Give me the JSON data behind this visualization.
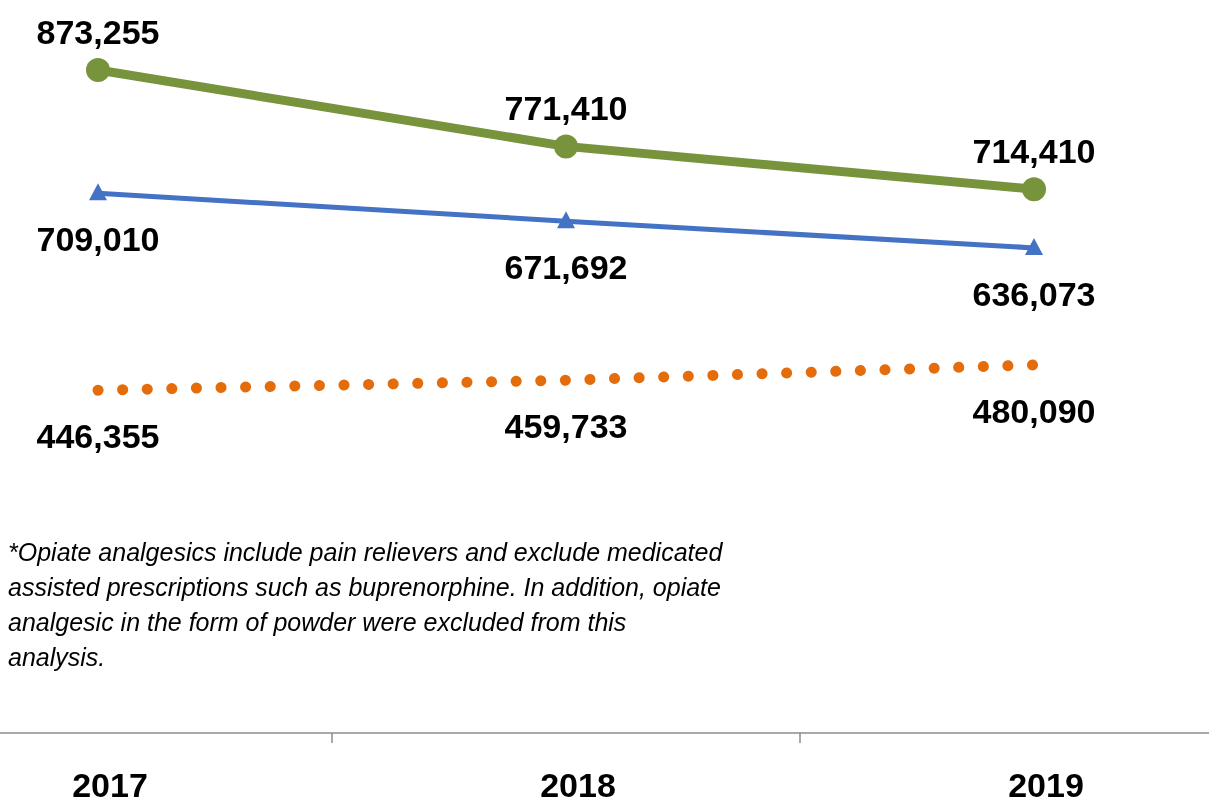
{
  "chart_data": {
    "type": "line",
    "categories": [
      "2017",
      "2018",
      "2019"
    ],
    "series": [
      {
        "color": "#77933c",
        "marker": "circle",
        "line_style": "solid",
        "values": [
          873255,
          771410,
          714410
        ],
        "value_labels": [
          "873,255",
          "771,410",
          "714,410"
        ]
      },
      {
        "color": "#4472c4",
        "marker": "triangle",
        "line_style": "solid",
        "values": [
          709010,
          671692,
          636073
        ],
        "value_labels": [
          "709,010",
          "671,692",
          "636,073"
        ]
      },
      {
        "color": "#e46c0a",
        "marker": "none",
        "line_style": "dotted",
        "values": [
          446355,
          459733,
          480090
        ],
        "value_labels": [
          "446,355",
          "459,733",
          "480,090"
        ]
      }
    ],
    "annotations": [
      "*Opiate analgesics include pain relievers and exclude medicated assisted prescriptions such as buprenorphine. In addition, opiate analgesic in the form of powder were excluded from this analysis."
    ]
  }
}
